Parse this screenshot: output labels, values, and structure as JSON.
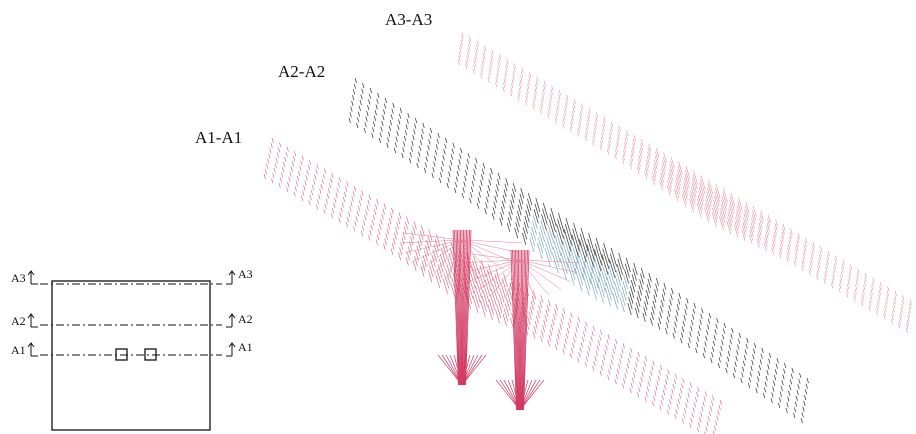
{
  "sections": {
    "labels": [
      "A1-A1",
      "A2-A2",
      "A3-A3"
    ]
  },
  "inset": {
    "left_labels": [
      "A3",
      "A2",
      "A1"
    ],
    "right_labels": [
      "A3",
      "A2",
      "A1"
    ]
  }
}
